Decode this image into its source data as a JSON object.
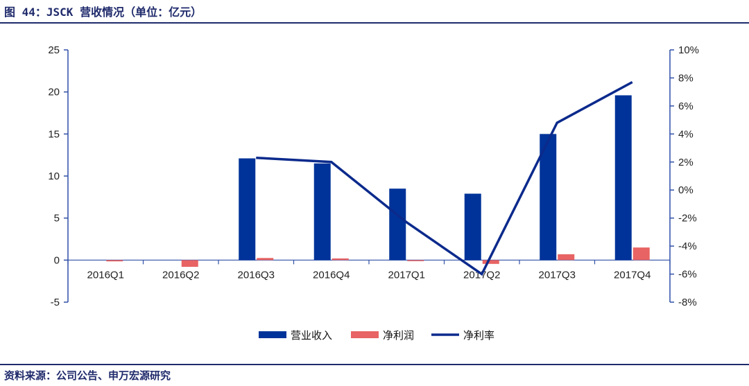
{
  "header": {
    "title": "图 44：JSCK 营收情况（单位：亿元）"
  },
  "footer": {
    "source": "资料来源：公司公告、申万宏源研究"
  },
  "colors": {
    "revenue": "#003399",
    "net_profit": "#e86363",
    "margin": "#0b2a8c",
    "rule": "#1f2a6b",
    "axis": "#2e4fa8"
  },
  "chart_data": {
    "type": "bar",
    "categories": [
      "2016Q1",
      "2016Q2",
      "2016Q3",
      "2016Q4",
      "2017Q1",
      "2017Q2",
      "2017Q3",
      "2017Q4"
    ],
    "series": [
      {
        "name": "营业收入",
        "type": "bar",
        "axis": "left",
        "values": [
          0,
          0,
          12.1,
          11.5,
          8.5,
          7.9,
          15.0,
          19.6
        ]
      },
      {
        "name": "净利润",
        "type": "bar",
        "axis": "left",
        "values": [
          -0.15,
          -0.8,
          0.25,
          0.2,
          -0.1,
          -0.45,
          0.7,
          1.5
        ]
      },
      {
        "name": "净利率",
        "type": "line",
        "axis": "right",
        "values": [
          null,
          null,
          2.3,
          2.0,
          -2.3,
          -6.0,
          4.8,
          7.7
        ]
      }
    ],
    "left_axis": {
      "ylim": [
        -5,
        25
      ],
      "ticks": [
        "-5",
        "0",
        "5",
        "10",
        "15",
        "20",
        "25"
      ]
    },
    "right_axis": {
      "ylim": [
        -8,
        10
      ],
      "ticks": [
        "-8%",
        "-6%",
        "-4%",
        "-2%",
        "0%",
        "2%",
        "4%",
        "6%",
        "8%",
        "10%"
      ]
    },
    "legend_position": "bottom",
    "grid": false
  }
}
